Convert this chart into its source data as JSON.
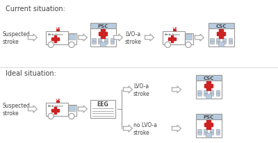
{
  "bg_color": "#ffffff",
  "title_current": "Current situation:",
  "title_ideal": "Ideal situation:",
  "label_suspected_stroke": "Suspected\nstroke",
  "label_lvo_a_stroke": "LVO-a\nstroke",
  "label_no_lvo_a_stroke": "no LVO-a\nstroke",
  "label_psc": "PSC",
  "label_csc": "CSC",
  "label_ambulance": "Ambulance",
  "label_eeg": "EEG",
  "red_color": "#cc2222",
  "outline_color": "#999999",
  "light_blue": "#b8cce0",
  "box_color": "#b8cce0",
  "text_color": "#444444",
  "arrow_color": "#aaaaaa"
}
